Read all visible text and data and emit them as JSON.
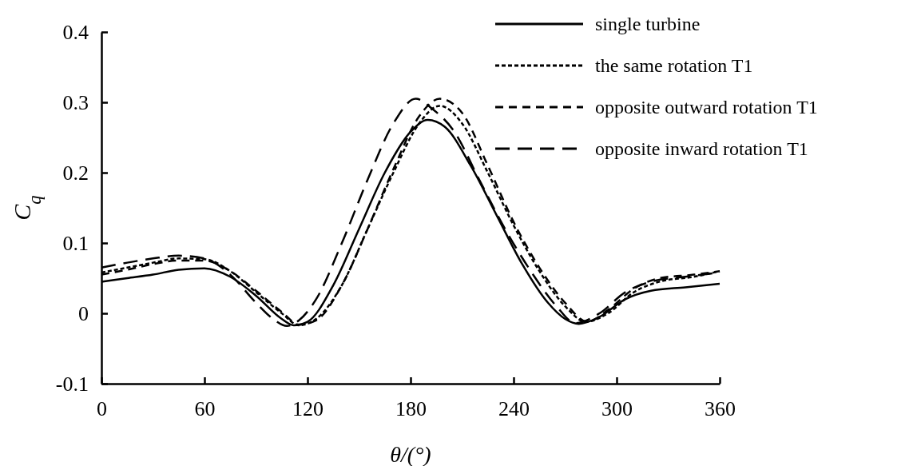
{
  "chart_data": {
    "type": "line",
    "xlabel": "θ/(°)",
    "ylabel": "C$_{q}$",
    "xlim": [
      0,
      360
    ],
    "ylim": [
      -0.1,
      0.4
    ],
    "xticks": [
      0,
      60,
      120,
      180,
      240,
      300,
      360
    ],
    "yticks": [
      -0.1,
      0,
      0.1,
      0.2,
      0.3,
      0.4
    ],
    "grid": false,
    "legend": "top right",
    "marker": "none",
    "series": [
      {
        "name": "single turbine",
        "color": "#000000",
        "line_style": "solid",
        "x": [
          0,
          15,
          30,
          45,
          60,
          75,
          90,
          105,
          112,
          120,
          135,
          150,
          165,
          180,
          190,
          200,
          215,
          230,
          245,
          260,
          270,
          278,
          290,
          305,
          320,
          340,
          360
        ],
        "values": [
          0.045,
          0.05,
          0.055,
          0.062,
          0.064,
          0.052,
          0.025,
          -0.008,
          -0.017,
          -0.012,
          0.04,
          0.12,
          0.2,
          0.258,
          0.275,
          0.265,
          0.21,
          0.14,
          0.07,
          0.015,
          -0.008,
          -0.015,
          -0.005,
          0.02,
          0.032,
          0.037,
          0.042
        ]
      },
      {
        "name": "the same rotation T1",
        "color": "#000000",
        "line_style": "dotted",
        "x": [
          0,
          15,
          30,
          45,
          60,
          75,
          90,
          105,
          115,
          125,
          140,
          155,
          170,
          185,
          197,
          210,
          225,
          240,
          255,
          270,
          282,
          295,
          310,
          325,
          345,
          360
        ],
        "values": [
          0.058,
          0.065,
          0.072,
          0.078,
          0.077,
          0.06,
          0.03,
          0.0,
          -0.017,
          -0.008,
          0.04,
          0.12,
          0.2,
          0.27,
          0.295,
          0.27,
          0.2,
          0.125,
          0.06,
          0.01,
          -0.012,
          0.0,
          0.03,
          0.045,
          0.052,
          0.06
        ]
      },
      {
        "name": "opposite outward rotation T1",
        "color": "#000000",
        "line_style": "dashed",
        "x": [
          0,
          15,
          30,
          45,
          60,
          75,
          90,
          105,
          115,
          125,
          140,
          155,
          170,
          185,
          197,
          210,
          225,
          240,
          255,
          270,
          283,
          295,
          310,
          325,
          345,
          360
        ],
        "values": [
          0.055,
          0.062,
          0.07,
          0.075,
          0.075,
          0.06,
          0.032,
          0.002,
          -0.016,
          -0.01,
          0.04,
          0.12,
          0.205,
          0.28,
          0.305,
          0.285,
          0.21,
          0.13,
          0.065,
          0.015,
          -0.012,
          0.005,
          0.035,
          0.05,
          0.055,
          0.06
        ]
      },
      {
        "name": "opposite inward rotation T1",
        "color": "#000000",
        "line_style": "longdash",
        "x": [
          0,
          15,
          30,
          45,
          60,
          75,
          90,
          100,
          108,
          115,
          125,
          140,
          155,
          170,
          183,
          193,
          205,
          220,
          235,
          250,
          265,
          276,
          290,
          305,
          320,
          340,
          360
        ],
        "values": [
          0.065,
          0.072,
          0.078,
          0.082,
          0.078,
          0.055,
          0.015,
          -0.008,
          -0.018,
          -0.01,
          0.02,
          0.1,
          0.19,
          0.27,
          0.305,
          0.29,
          0.26,
          0.19,
          0.12,
          0.06,
          0.01,
          -0.014,
          0.0,
          0.03,
          0.045,
          0.052,
          0.058
        ]
      }
    ]
  }
}
